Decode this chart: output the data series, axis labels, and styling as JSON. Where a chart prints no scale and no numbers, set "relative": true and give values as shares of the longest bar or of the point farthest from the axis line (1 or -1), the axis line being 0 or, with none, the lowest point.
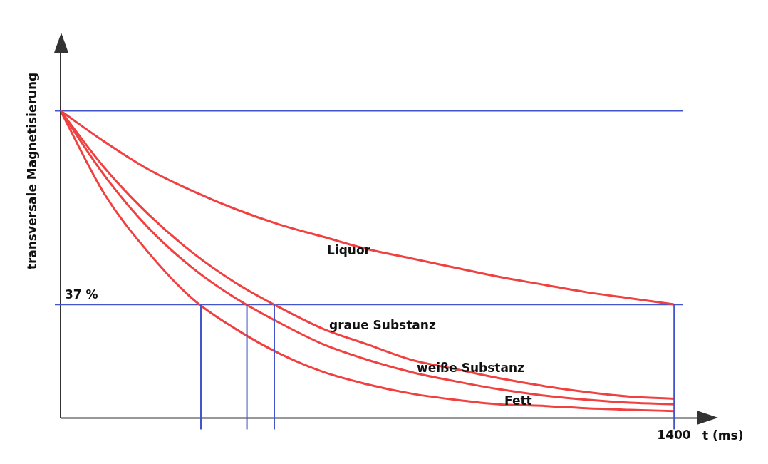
{
  "chart_data": {
    "type": "line",
    "relative": true,
    "ylabel": "transversale Magnetisierung",
    "xlabel": "t (ms)",
    "categories": [
      null,
      null,
      null,
      null,
      null,
      null,
      null,
      null,
      null,
      null,
      null,
      null,
      null,
      null,
      null
    ],
    "annotations": [
      "1400"
    ],
    "series": [
      {
        "name": "Liquor",
        "color": "#f04040",
        "values": [
          1,
          0.9,
          0.81,
          0.74,
          0.68,
          0.63,
          0.59,
          0.55,
          0.52,
          0.49,
          0.46,
          0.435,
          0.41,
          0.39,
          0.37
        ]
      },
      {
        "name": "graue Substanz",
        "color": "#f04040",
        "values": [
          1,
          0.815,
          0.664,
          0.54,
          0.44,
          0.36,
          0.29,
          0.24,
          0.19,
          0.16,
          0.13,
          0.105,
          0.085,
          0.07,
          0.063
        ]
      },
      {
        "name": "weiße Substanz",
        "color": "#f04040",
        "values": [
          1,
          0.79,
          0.62,
          0.49,
          0.39,
          0.31,
          0.24,
          0.19,
          0.15,
          0.12,
          0.094,
          0.074,
          0.06,
          0.05,
          0.045
        ]
      },
      {
        "name": "Fett",
        "color": "#f04040",
        "values": [
          1,
          0.73,
          0.54,
          0.39,
          0.29,
          0.21,
          0.15,
          0.11,
          0.08,
          0.06,
          0.045,
          0.04,
          0.032,
          0.027,
          0.023
        ]
      }
    ],
    "ref_lines": [
      {
        "axis": "y",
        "value": 1,
        "color": "#4455cc"
      },
      {
        "axis": "y",
        "value": 0.37,
        "label": "37 %",
        "color": "#4455cc"
      }
    ],
    "legend": false,
    "marker": "none",
    "line_style": "solid"
  }
}
